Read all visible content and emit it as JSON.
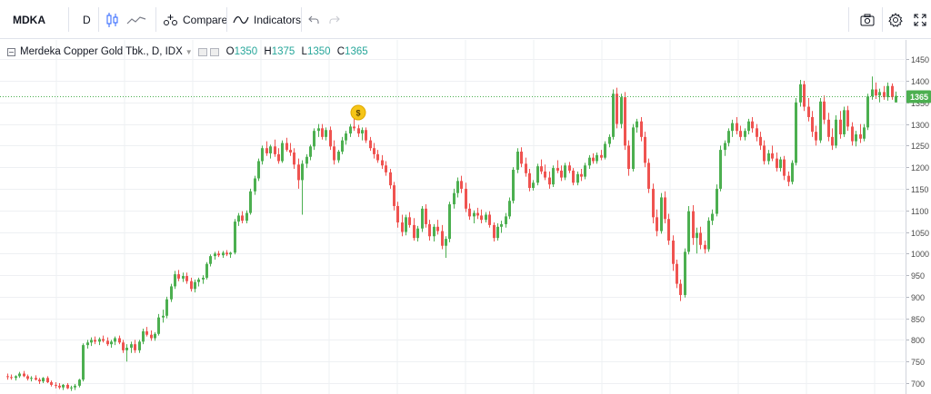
{
  "toolbar": {
    "symbol": "MDKA",
    "interval": "D",
    "compare_label": "Compare",
    "indicators_label": "Indicators"
  },
  "legend": {
    "title": "Merdeka Copper Gold Tbk., D, IDX",
    "o_label": "O",
    "o_value": "1350",
    "h_label": "H",
    "h_value": "1375",
    "l_label": "L",
    "l_value": "1350",
    "c_label": "C",
    "c_value": "1365"
  },
  "colors": {
    "up": "#26a69a",
    "up_bright": "#4caf50",
    "down": "#ef5350",
    "down_dark": "#d32f2f",
    "price_line": "#4caf50",
    "grid": "#eef0f3",
    "axis_text": "#4a4a4a",
    "dividend_marker": "#f5c518"
  },
  "chart_data": {
    "type": "candlestick",
    "title": "Merdeka Copper Gold Tbk., D, IDX",
    "ylim": [
      680,
      1480
    ],
    "y_ticks": [
      700,
      750,
      800,
      850,
      900,
      950,
      1000,
      1050,
      1100,
      1150,
      1200,
      1250,
      1300,
      1350,
      1400,
      1450
    ],
    "last_price": 1365,
    "last_price_label": "1365",
    "marker": {
      "label": "$",
      "index": 88
    },
    "grid": true,
    "candles": [
      [
        716,
        722,
        708,
        714
      ],
      [
        714,
        720,
        708,
        712
      ],
      [
        712,
        718,
        706,
        716
      ],
      [
        716,
        726,
        712,
        722
      ],
      [
        722,
        728,
        714,
        716
      ],
      [
        716,
        720,
        706,
        710
      ],
      [
        710,
        716,
        704,
        712
      ],
      [
        712,
        718,
        706,
        708
      ],
      [
        708,
        712,
        698,
        704
      ],
      [
        704,
        714,
        700,
        712
      ],
      [
        712,
        716,
        700,
        702
      ],
      [
        702,
        706,
        692,
        696
      ],
      [
        696,
        702,
        688,
        694
      ],
      [
        694,
        700,
        686,
        690
      ],
      [
        690,
        698,
        684,
        696
      ],
      [
        696,
        700,
        686,
        688
      ],
      [
        688,
        694,
        682,
        690
      ],
      [
        690,
        698,
        684,
        694
      ],
      [
        694,
        710,
        690,
        708
      ],
      [
        708,
        792,
        704,
        788
      ],
      [
        788,
        800,
        780,
        794
      ],
      [
        794,
        806,
        786,
        800
      ],
      [
        800,
        808,
        790,
        796
      ],
      [
        796,
        806,
        788,
        802
      ],
      [
        802,
        810,
        794,
        798
      ],
      [
        798,
        806,
        786,
        790
      ],
      [
        790,
        800,
        782,
        796
      ],
      [
        796,
        808,
        788,
        804
      ],
      [
        804,
        810,
        790,
        794
      ],
      [
        794,
        800,
        770,
        776
      ],
      [
        776,
        790,
        750,
        782
      ],
      [
        782,
        796,
        770,
        790
      ],
      [
        790,
        800,
        770,
        776
      ],
      [
        776,
        800,
        770,
        796
      ],
      [
        796,
        826,
        790,
        820
      ],
      [
        820,
        830,
        808,
        812
      ],
      [
        812,
        822,
        798,
        804
      ],
      [
        804,
        818,
        798,
        814
      ],
      [
        814,
        860,
        810,
        852
      ],
      [
        852,
        870,
        840,
        856
      ],
      [
        856,
        900,
        850,
        894
      ],
      [
        894,
        930,
        888,
        924
      ],
      [
        924,
        960,
        918,
        952
      ],
      [
        952,
        962,
        936,
        942
      ],
      [
        942,
        956,
        934,
        948
      ],
      [
        948,
        956,
        930,
        936
      ],
      [
        936,
        944,
        912,
        918
      ],
      [
        918,
        940,
        910,
        934
      ],
      [
        934,
        944,
        924,
        940
      ],
      [
        940,
        950,
        930,
        944
      ],
      [
        944,
        980,
        940,
        976
      ],
      [
        976,
        998,
        970,
        994
      ],
      [
        994,
        1004,
        986,
        1000
      ],
      [
        1000,
        1006,
        992,
        996
      ],
      [
        996,
        1006,
        990,
        1002
      ],
      [
        1002,
        1008,
        994,
        998
      ],
      [
        998,
        1004,
        990,
        1002
      ],
      [
        1002,
        1080,
        998,
        1074
      ],
      [
        1074,
        1094,
        1064,
        1088
      ],
      [
        1088,
        1098,
        1070,
        1076
      ],
      [
        1076,
        1100,
        1070,
        1094
      ],
      [
        1094,
        1150,
        1090,
        1144
      ],
      [
        1144,
        1180,
        1136,
        1174
      ],
      [
        1174,
        1220,
        1168,
        1214
      ],
      [
        1214,
        1250,
        1206,
        1244
      ],
      [
        1244,
        1260,
        1226,
        1232
      ],
      [
        1232,
        1252,
        1220,
        1248
      ],
      [
        1248,
        1264,
        1224,
        1230
      ],
      [
        1230,
        1244,
        1208,
        1214
      ],
      [
        1214,
        1262,
        1210,
        1256
      ],
      [
        1256,
        1268,
        1236,
        1240
      ],
      [
        1240,
        1256,
        1226,
        1234
      ],
      [
        1234,
        1244,
        1196,
        1206
      ],
      [
        1206,
        1220,
        1150,
        1170
      ],
      [
        1170,
        1216,
        1090,
        1208
      ],
      [
        1208,
        1230,
        1198,
        1224
      ],
      [
        1224,
        1252,
        1216,
        1248
      ],
      [
        1248,
        1290,
        1240,
        1284
      ],
      [
        1284,
        1300,
        1270,
        1290
      ],
      [
        1290,
        1300,
        1264,
        1270
      ],
      [
        1270,
        1292,
        1262,
        1286
      ],
      [
        1286,
        1294,
        1240,
        1248
      ],
      [
        1248,
        1262,
        1206,
        1216
      ],
      [
        1216,
        1240,
        1210,
        1236
      ],
      [
        1236,
        1270,
        1230,
        1262
      ],
      [
        1262,
        1284,
        1252,
        1278
      ],
      [
        1278,
        1300,
        1270,
        1294
      ],
      [
        1294,
        1330,
        1284,
        1290
      ],
      [
        1290,
        1298,
        1270,
        1278
      ],
      [
        1278,
        1292,
        1262,
        1286
      ],
      [
        1286,
        1292,
        1256,
        1262
      ],
      [
        1262,
        1270,
        1238,
        1244
      ],
      [
        1244,
        1256,
        1220,
        1230
      ],
      [
        1230,
        1240,
        1210,
        1216
      ],
      [
        1216,
        1228,
        1196,
        1204
      ],
      [
        1204,
        1214,
        1180,
        1188
      ],
      [
        1188,
        1196,
        1150,
        1158
      ],
      [
        1158,
        1166,
        1100,
        1110
      ],
      [
        1110,
        1120,
        1060,
        1072
      ],
      [
        1072,
        1090,
        1040,
        1050
      ],
      [
        1050,
        1090,
        1042,
        1084
      ],
      [
        1084,
        1096,
        1060,
        1066
      ],
      [
        1066,
        1082,
        1030,
        1036
      ],
      [
        1036,
        1064,
        1028,
        1058
      ],
      [
        1058,
        1110,
        1050,
        1104
      ],
      [
        1104,
        1114,
        1060,
        1068
      ],
      [
        1068,
        1078,
        1030,
        1040
      ],
      [
        1040,
        1068,
        1028,
        1062
      ],
      [
        1062,
        1078,
        1044,
        1052
      ],
      [
        1052,
        1066,
        1010,
        1018
      ],
      [
        1018,
        1040,
        990,
        1034
      ],
      [
        1034,
        1120,
        1026,
        1114
      ],
      [
        1114,
        1150,
        1104,
        1140
      ],
      [
        1140,
        1176,
        1130,
        1168
      ],
      [
        1168,
        1180,
        1140,
        1150
      ],
      [
        1150,
        1164,
        1096,
        1104
      ],
      [
        1104,
        1116,
        1078,
        1086
      ],
      [
        1086,
        1100,
        1070,
        1094
      ],
      [
        1094,
        1106,
        1080,
        1088
      ],
      [
        1088,
        1102,
        1070,
        1078
      ],
      [
        1078,
        1096,
        1072,
        1090
      ],
      [
        1090,
        1098,
        1060,
        1066
      ],
      [
        1066,
        1072,
        1028,
        1036
      ],
      [
        1036,
        1070,
        1030,
        1062
      ],
      [
        1062,
        1076,
        1048,
        1068
      ],
      [
        1068,
        1094,
        1060,
        1086
      ],
      [
        1086,
        1130,
        1080,
        1122
      ],
      [
        1122,
        1200,
        1116,
        1194
      ],
      [
        1194,
        1244,
        1186,
        1236
      ],
      [
        1236,
        1246,
        1200,
        1208
      ],
      [
        1208,
        1222,
        1178,
        1186
      ],
      [
        1186,
        1196,
        1144,
        1152
      ],
      [
        1152,
        1170,
        1146,
        1164
      ],
      [
        1164,
        1208,
        1158,
        1202
      ],
      [
        1202,
        1218,
        1184,
        1190
      ],
      [
        1190,
        1206,
        1170,
        1176
      ],
      [
        1176,
        1190,
        1150,
        1160
      ],
      [
        1160,
        1204,
        1154,
        1198
      ],
      [
        1198,
        1216,
        1186,
        1192
      ],
      [
        1192,
        1204,
        1168,
        1176
      ],
      [
        1176,
        1210,
        1170,
        1204
      ],
      [
        1204,
        1212,
        1186,
        1192
      ],
      [
        1192,
        1198,
        1158,
        1164
      ],
      [
        1164,
        1190,
        1158,
        1184
      ],
      [
        1184,
        1196,
        1168,
        1178
      ],
      [
        1178,
        1210,
        1172,
        1204
      ],
      [
        1204,
        1228,
        1196,
        1222
      ],
      [
        1222,
        1232,
        1208,
        1214
      ],
      [
        1214,
        1234,
        1208,
        1228
      ],
      [
        1228,
        1240,
        1216,
        1222
      ],
      [
        1222,
        1260,
        1218,
        1254
      ],
      [
        1254,
        1276,
        1246,
        1270
      ],
      [
        1270,
        1380,
        1264,
        1370
      ],
      [
        1370,
        1384,
        1290,
        1300
      ],
      [
        1300,
        1370,
        1290,
        1362
      ],
      [
        1362,
        1374,
        1240,
        1250
      ],
      [
        1250,
        1262,
        1180,
        1196
      ],
      [
        1196,
        1300,
        1190,
        1292
      ],
      [
        1292,
        1312,
        1280,
        1306
      ],
      [
        1306,
        1316,
        1260,
        1270
      ],
      [
        1270,
        1282,
        1200,
        1210
      ],
      [
        1210,
        1220,
        1140,
        1150
      ],
      [
        1150,
        1162,
        1070,
        1084
      ],
      [
        1084,
        1102,
        1040,
        1052
      ],
      [
        1052,
        1140,
        1046,
        1130
      ],
      [
        1130,
        1144,
        1070,
        1080
      ],
      [
        1080,
        1092,
        1020,
        1030
      ],
      [
        1030,
        1042,
        960,
        976
      ],
      [
        976,
        986,
        920,
        930
      ],
      [
        930,
        940,
        890,
        904
      ],
      [
        904,
        1012,
        898,
        1004
      ],
      [
        1004,
        1110,
        998,
        1098
      ],
      [
        1098,
        1112,
        1020,
        1036
      ],
      [
        1036,
        1060,
        1000,
        1048
      ],
      [
        1048,
        1062,
        1010,
        1020
      ],
      [
        1020,
        1030,
        1000,
        1010
      ],
      [
        1010,
        1084,
        1004,
        1076
      ],
      [
        1076,
        1102,
        1066,
        1092
      ],
      [
        1092,
        1160,
        1086,
        1150
      ],
      [
        1150,
        1250,
        1144,
        1240
      ],
      [
        1240,
        1262,
        1226,
        1256
      ],
      [
        1256,
        1290,
        1248,
        1284
      ],
      [
        1284,
        1310,
        1270,
        1302
      ],
      [
        1302,
        1316,
        1276,
        1284
      ],
      [
        1284,
        1296,
        1262,
        1270
      ],
      [
        1270,
        1290,
        1262,
        1284
      ],
      [
        1284,
        1312,
        1276,
        1306
      ],
      [
        1306,
        1316,
        1280,
        1290
      ],
      [
        1290,
        1300,
        1260,
        1270
      ],
      [
        1270,
        1282,
        1240,
        1250
      ],
      [
        1250,
        1262,
        1206,
        1214
      ],
      [
        1214,
        1240,
        1206,
        1232
      ],
      [
        1232,
        1250,
        1214,
        1220
      ],
      [
        1220,
        1234,
        1190,
        1198
      ],
      [
        1198,
        1224,
        1190,
        1218
      ],
      [
        1218,
        1226,
        1170,
        1180
      ],
      [
        1180,
        1190,
        1156,
        1166
      ],
      [
        1166,
        1216,
        1160,
        1210
      ],
      [
        1210,
        1360,
        1204,
        1350
      ],
      [
        1350,
        1402,
        1340,
        1392
      ],
      [
        1392,
        1400,
        1330,
        1340
      ],
      [
        1340,
        1360,
        1306,
        1316
      ],
      [
        1316,
        1330,
        1270,
        1282
      ],
      [
        1282,
        1296,
        1250,
        1262
      ],
      [
        1262,
        1360,
        1256,
        1352
      ],
      [
        1352,
        1366,
        1300,
        1310
      ],
      [
        1310,
        1326,
        1260,
        1270
      ],
      [
        1270,
        1290,
        1240,
        1250
      ],
      [
        1250,
        1320,
        1244,
        1310
      ],
      [
        1310,
        1330,
        1266,
        1276
      ],
      [
        1276,
        1340,
        1270,
        1332
      ],
      [
        1332,
        1342,
        1284,
        1294
      ],
      [
        1294,
        1304,
        1250,
        1260
      ],
      [
        1260,
        1284,
        1248,
        1276
      ],
      [
        1276,
        1300,
        1256,
        1266
      ],
      [
        1266,
        1300,
        1260,
        1292
      ],
      [
        1292,
        1370,
        1286,
        1364
      ],
      [
        1364,
        1410,
        1356,
        1380
      ],
      [
        1380,
        1396,
        1358,
        1366
      ],
      [
        1366,
        1382,
        1350,
        1374
      ],
      [
        1374,
        1388,
        1356,
        1362
      ],
      [
        1362,
        1396,
        1354,
        1388
      ],
      [
        1388,
        1394,
        1356,
        1362
      ],
      [
        1350,
        1375,
        1350,
        1365
      ]
    ]
  }
}
